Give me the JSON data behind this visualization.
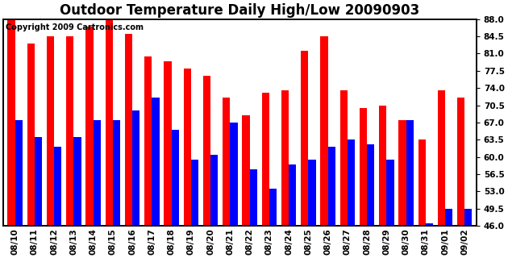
{
  "title": "Outdoor Temperature Daily High/Low 20090903",
  "copyright": "Copyright 2009 Cartronics.com",
  "dates": [
    "08/10",
    "08/11",
    "08/12",
    "08/13",
    "08/14",
    "08/15",
    "08/16",
    "08/17",
    "08/18",
    "08/19",
    "08/20",
    "08/21",
    "08/22",
    "08/23",
    "08/24",
    "08/25",
    "08/26",
    "08/27",
    "08/28",
    "08/29",
    "08/30",
    "08/31",
    "09/01",
    "09/02"
  ],
  "highs": [
    88.0,
    83.0,
    84.5,
    84.5,
    86.5,
    88.0,
    85.0,
    80.5,
    79.5,
    78.0,
    76.5,
    72.0,
    68.5,
    73.0,
    73.5,
    81.5,
    84.5,
    73.5,
    70.0,
    70.5,
    67.5,
    63.5,
    73.5,
    72.0
  ],
  "lows": [
    67.5,
    64.0,
    62.0,
    64.0,
    67.5,
    67.5,
    69.5,
    72.0,
    65.5,
    59.5,
    60.5,
    67.0,
    57.5,
    53.5,
    58.5,
    59.5,
    62.0,
    63.5,
    62.5,
    59.5,
    67.5,
    46.5,
    49.5,
    49.5
  ],
  "high_color": "#ff0000",
  "low_color": "#0000ff",
  "bg_color": "#ffffff",
  "grid_color": "#aaaaaa",
  "yticks": [
    46.0,
    49.5,
    53.0,
    56.5,
    60.0,
    63.5,
    67.0,
    70.5,
    74.0,
    77.5,
    81.0,
    84.5,
    88.0
  ],
  "ylim": [
    46.0,
    88.0
  ],
  "bar_width": 0.38,
  "title_fontsize": 12,
  "tick_fontsize": 7.5,
  "copyright_fontsize": 7
}
